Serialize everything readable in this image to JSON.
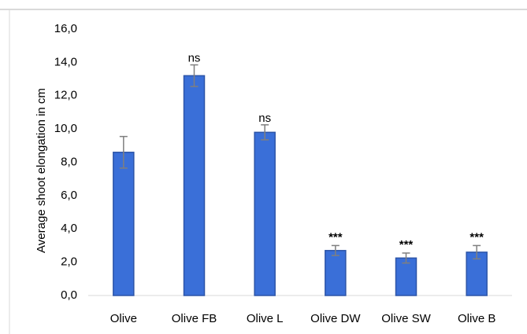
{
  "chart_data": {
    "type": "bar",
    "title": "",
    "xlabel": "",
    "ylabel": "Average shoot elongation in cm",
    "ylim": [
      0,
      16
    ],
    "yticks": [
      "0,0",
      "2,0",
      "4,0",
      "6,0",
      "8,0",
      "10,0",
      "12,0",
      "14,0",
      "16,0"
    ],
    "categories": [
      "Olive",
      "Olive FB",
      "Olive L",
      "Olive DW",
      "Olive SW",
      "Olive B"
    ],
    "values": [
      8.6,
      13.2,
      9.8,
      2.7,
      2.25,
      2.6
    ],
    "errors": [
      0.95,
      0.65,
      0.45,
      0.3,
      0.3,
      0.4
    ],
    "annotations": [
      "",
      "ns",
      "ns",
      "***",
      "***",
      "***"
    ],
    "bar_color": "#3a6fd8",
    "bar_edge_color": "#2d55a8",
    "error_color": "#7f7f7f",
    "grid": false
  }
}
